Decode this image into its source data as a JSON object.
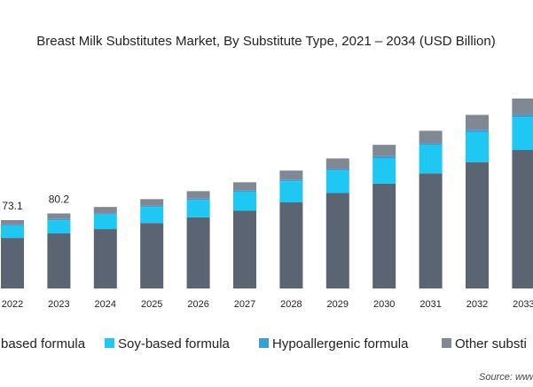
{
  "chart_data": {
    "type": "stacked-bar",
    "title": "Breast Milk Substitutes Market, By Substitute Type, 2021 – 2034 (USD Billion)",
    "categories": [
      "2022",
      "2023",
      "2024",
      "2025",
      "2026",
      "2027",
      "2028",
      "2029",
      "2030",
      "2031",
      "2032",
      "2033"
    ],
    "series": [
      {
        "name": "based formula",
        "color": "#5b6472",
        "values": [
          54,
          58.8,
          63.5,
          70,
          76,
          83,
          92,
          102,
          112,
          123,
          135,
          148
        ]
      },
      {
        "name": "Soy-based formula",
        "color": "#1ec8f2",
        "values": [
          13,
          14,
          15.5,
          17,
          18.5,
          20,
          22.5,
          24,
          27,
          30,
          32,
          35
        ]
      },
      {
        "name": "Hypoallergenic formula",
        "color": "#3a9fd6",
        "values": [
          1.5,
          1.5,
          1.5,
          1.5,
          1.5,
          2,
          2,
          2,
          2.5,
          2.5,
          2.5,
          3
        ]
      },
      {
        "name": "Other substi",
        "color": "#7f8893",
        "values": [
          4.6,
          5.9,
          6.6,
          7,
          8,
          8.5,
          9.5,
          11,
          12,
          13,
          16,
          17
        ]
      }
    ],
    "annotations": [
      {
        "category": "2022",
        "text": "73.1"
      },
      {
        "category": "2023",
        "text": "80.2"
      }
    ],
    "source": "Source: www"
  }
}
